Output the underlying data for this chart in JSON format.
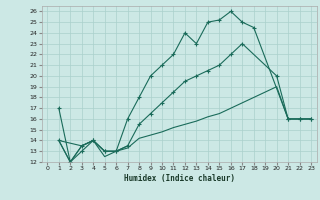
{
  "xlabel": "Humidex (Indice chaleur)",
  "bg_color": "#cce8e5",
  "grid_color": "#aad0cc",
  "line_color": "#1a6b5a",
  "xlim": [
    -0.5,
    23.5
  ],
  "ylim": [
    12,
    26.5
  ],
  "xticks": [
    0,
    1,
    2,
    3,
    4,
    5,
    6,
    7,
    8,
    9,
    10,
    11,
    12,
    13,
    14,
    15,
    16,
    17,
    18,
    19,
    20,
    21,
    22,
    23
  ],
  "yticks": [
    12,
    13,
    14,
    15,
    16,
    17,
    18,
    19,
    20,
    21,
    22,
    23,
    24,
    25,
    26
  ],
  "line1_x": [
    1,
    2,
    3,
    4,
    5,
    6,
    7,
    8,
    9,
    10,
    11,
    12,
    13,
    14,
    15,
    16,
    17,
    18,
    21,
    22,
    23
  ],
  "line1_y": [
    17,
    12,
    13,
    14,
    13,
    13,
    16,
    18,
    20,
    21,
    22,
    24,
    23,
    25,
    25.2,
    26,
    25,
    24.5,
    16,
    16,
    16
  ],
  "line2_x": [
    1,
    2,
    3,
    4,
    5,
    6,
    7,
    8,
    9,
    10,
    11,
    12,
    13,
    14,
    15,
    16,
    17,
    18,
    19,
    20,
    21,
    22,
    23
  ],
  "line2_y": [
    14,
    12,
    13.5,
    14,
    13,
    13,
    13.3,
    14.2,
    14.5,
    14.8,
    15.2,
    15.5,
    15.8,
    16.2,
    16.5,
    17,
    17.5,
    18,
    18.5,
    19,
    16,
    16,
    16
  ],
  "line3_x": [
    1,
    2,
    3,
    4,
    5,
    6,
    7,
    8,
    9,
    10,
    11,
    12,
    13,
    14,
    15,
    16,
    17,
    20,
    21,
    22,
    23
  ],
  "line3_y": [
    14,
    12,
    13.5,
    14,
    13,
    13,
    13.5,
    15.5,
    16.5,
    17.5,
    18.5,
    19.5,
    20,
    20.5,
    21,
    22,
    23,
    20,
    16,
    16,
    16
  ],
  "line4_x": [
    1,
    3,
    4,
    5,
    6,
    7
  ],
  "line4_y": [
    14,
    13.5,
    14,
    12.5,
    13,
    13.5
  ]
}
